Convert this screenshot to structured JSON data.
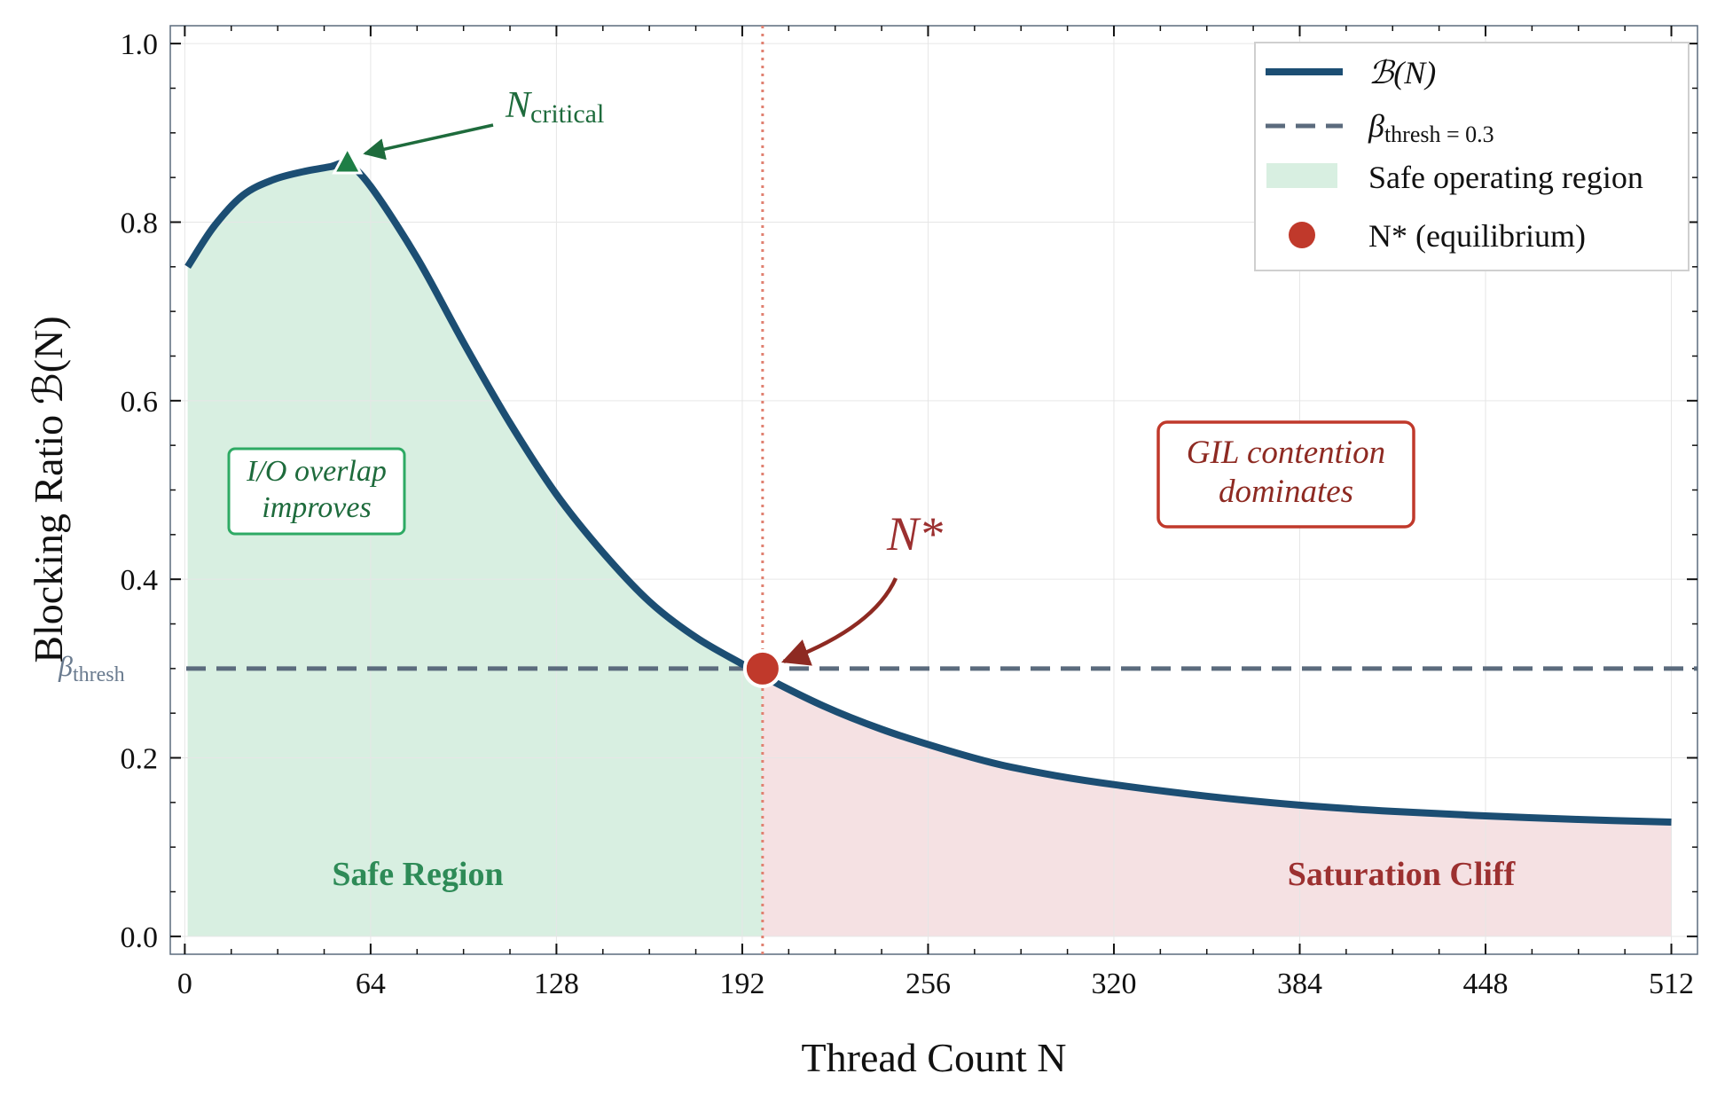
{
  "chart_data": {
    "type": "line",
    "title": "",
    "xlabel": "Thread Count N",
    "ylabel": "Blocking Ratio ℬ(N)",
    "xlim": [
      -5,
      521
    ],
    "ylim": [
      -0.02,
      1.02
    ],
    "xticks": [
      0,
      64,
      128,
      192,
      256,
      320,
      384,
      448,
      512
    ],
    "yticks": [
      0.0,
      0.2,
      0.4,
      0.6,
      0.8,
      1.0
    ],
    "xtick_labels": [
      "0",
      "64",
      "128",
      "192",
      "256",
      "320",
      "384",
      "448",
      "512"
    ],
    "ytick_labels": [
      "0.0",
      "0.2",
      "0.4",
      "0.6",
      "0.8",
      "1.0"
    ],
    "grid": true,
    "series": [
      {
        "name": "ℬ(N)",
        "color": "#1c4e73",
        "x": [
          1,
          10,
          20,
          30,
          40,
          50,
          56,
          64,
          80,
          96,
          112,
          128,
          144,
          160,
          176,
          192,
          200,
          220,
          240,
          260,
          280,
          300,
          320,
          352,
          384,
          416,
          448,
          480,
          512
        ],
        "y": [
          0.75,
          0.795,
          0.83,
          0.847,
          0.856,
          0.862,
          0.865,
          0.84,
          0.76,
          0.665,
          0.575,
          0.495,
          0.43,
          0.375,
          0.335,
          0.305,
          0.29,
          0.258,
          0.232,
          0.211,
          0.193,
          0.18,
          0.17,
          0.157,
          0.147,
          0.14,
          0.135,
          0.131,
          0.128
        ]
      }
    ],
    "threshold": {
      "label": "β_thresh = 0.3",
      "y": 0.3,
      "color": "#5b6b7d"
    },
    "equilibrium": {
      "label": "N* (equilibrium)",
      "x": 199,
      "y": 0.3,
      "color": "#c0392b"
    },
    "critical_point": {
      "label": "N_critical",
      "x": 56,
      "y": 0.865,
      "color": "#1e7e45"
    },
    "legend": {
      "position": "top-right",
      "entries": [
        {
          "key": "line",
          "label": "ℬ(N)"
        },
        {
          "key": "dashed",
          "label": "β_thresh = 0.3"
        },
        {
          "key": "patch",
          "label": "Safe operating region"
        },
        {
          "key": "marker",
          "label": "N* (equilibrium)"
        }
      ]
    },
    "annotations": {
      "n_critical": "N_critical",
      "n_star": "N*",
      "io_overlap": [
        "I/O overlap",
        "improves"
      ],
      "gil_contention": [
        "GIL contention",
        "dominates"
      ],
      "safe_region": "Safe Region",
      "saturation_cliff": "Saturation Cliff",
      "beta_thresh_axis": "β_thresh"
    },
    "colors": {
      "safe_fill": "#d8efe1",
      "saturation_fill": "#f5e1e3",
      "vline": "#e08070",
      "green_text": "#2e8b57",
      "red_text": "#9c3030",
      "axes": "#5b6b7d"
    }
  }
}
